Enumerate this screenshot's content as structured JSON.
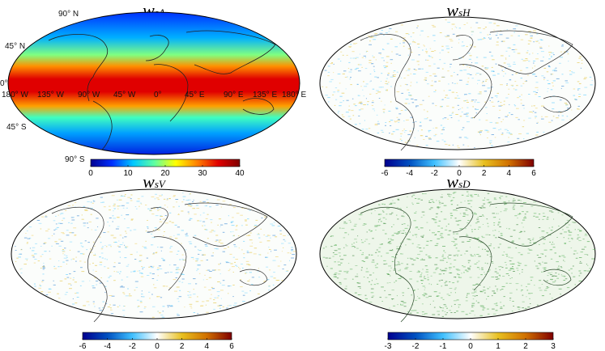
{
  "panels": [
    {
      "id": "wsA",
      "title_main": "w",
      "title_sub": "sA",
      "colorbar": {
        "ticks": [
          "0",
          "10",
          "20",
          "30",
          "40"
        ],
        "range": [
          0,
          40
        ],
        "colormap": [
          "#00008f",
          "#0030ff",
          "#00c8ff",
          "#60ffa0",
          "#ffff00",
          "#ff8000",
          "#e00000",
          "#800000"
        ]
      },
      "lat_labels": [
        "90° N",
        "45° N",
        "0°",
        "45° S",
        "90° S"
      ],
      "lon_labels": [
        "180° W",
        "135° W",
        "90° W",
        "45° W",
        "0°",
        "45° E",
        "90° E",
        "135° E",
        "180° E"
      ]
    },
    {
      "id": "wsH",
      "title_main": "w",
      "title_sub": "sH",
      "colorbar": {
        "ticks": [
          "-6",
          "-4",
          "-2",
          "0",
          "2",
          "4",
          "6"
        ],
        "range": [
          -6,
          6
        ],
        "colormap": [
          "#00008f",
          "#0050c0",
          "#40c0ff",
          "#ffffff",
          "#e8c020",
          "#d07000",
          "#800000"
        ]
      }
    },
    {
      "id": "wsV",
      "title_main": "w",
      "title_sub": "sV",
      "colorbar": {
        "ticks": [
          "-6",
          "-4",
          "-2",
          "0",
          "2",
          "4",
          "6"
        ],
        "range": [
          -6,
          6
        ],
        "colormap": [
          "#00008f",
          "#0050c0",
          "#40c0ff",
          "#ffffff",
          "#e8c020",
          "#d07000",
          "#800000"
        ]
      }
    },
    {
      "id": "wsD",
      "title_main": "w",
      "title_sub": "sD",
      "colorbar": {
        "ticks": [
          "-3",
          "-2",
          "-1",
          "0",
          "1",
          "2",
          "3"
        ],
        "range": [
          -3,
          3
        ],
        "colormap": [
          "#00008f",
          "#0050c0",
          "#40c0ff",
          "#ffffff",
          "#e8c020",
          "#d07000",
          "#800000"
        ]
      }
    }
  ]
}
